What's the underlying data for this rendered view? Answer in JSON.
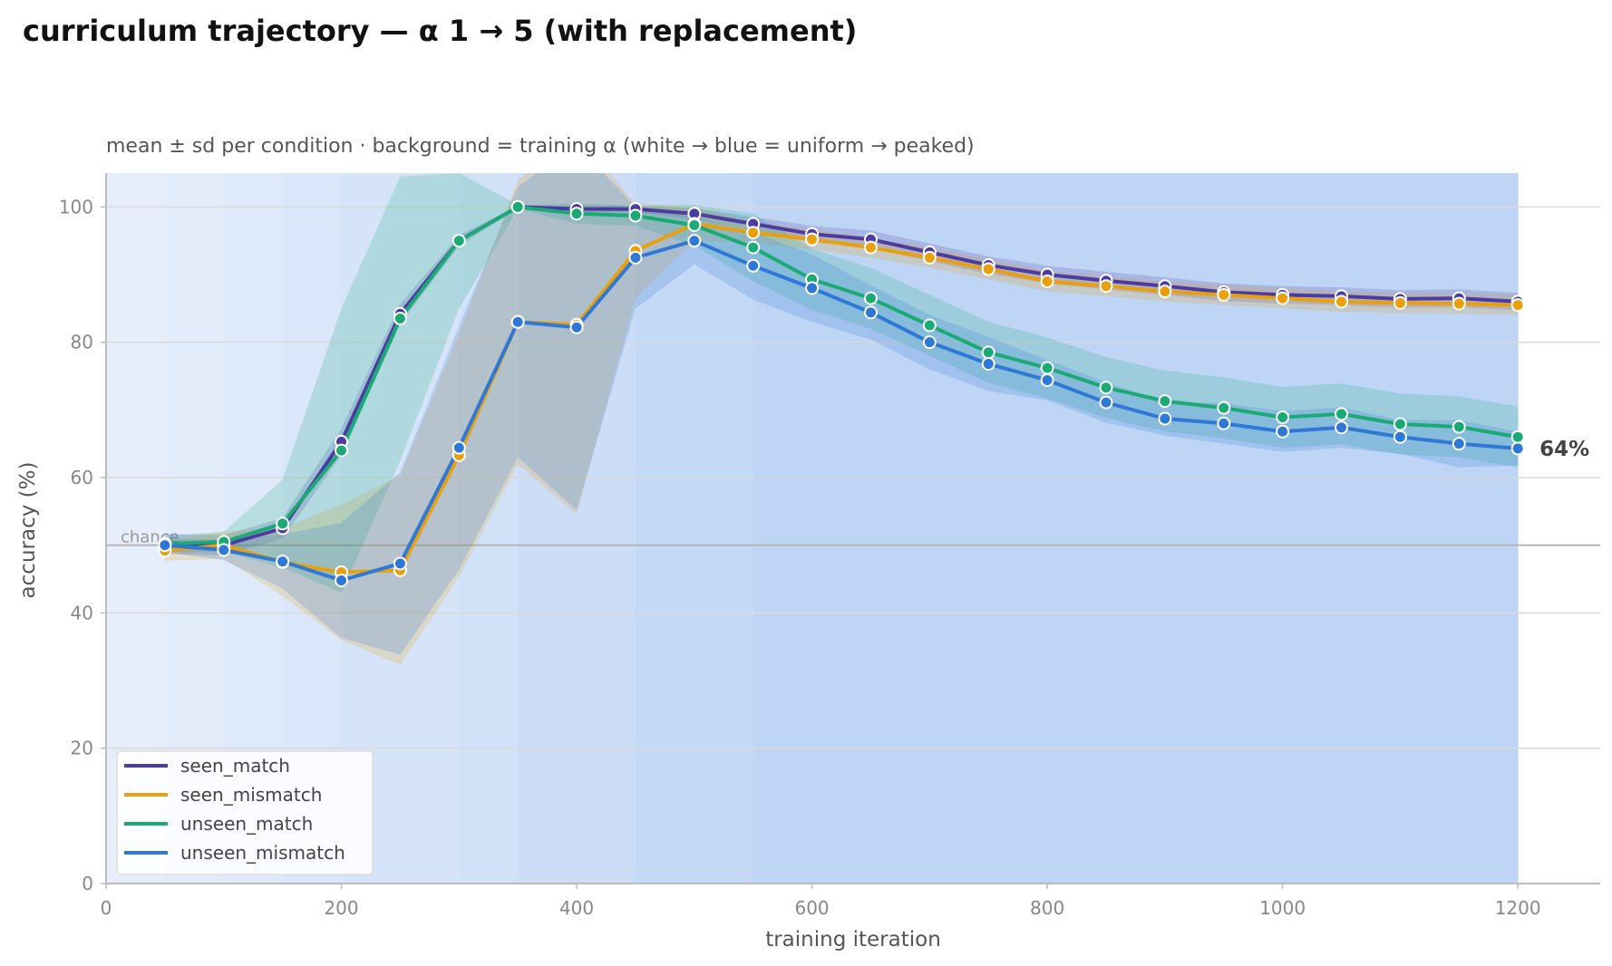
{
  "chart_data": {
    "type": "line",
    "title": "curriculum trajectory — α 1 → 5 (with replacement)",
    "subtitle": "mean ± sd per condition · background = training α (white → blue = uniform → peaked)",
    "xlabel": "training iteration",
    "ylabel": "accuracy (%)",
    "xlim": [
      0,
      1270
    ],
    "ylim": [
      0,
      105
    ],
    "xticks": [
      0,
      200,
      400,
      600,
      800,
      1000,
      1200
    ],
    "yticks": [
      0,
      20,
      40,
      60,
      80,
      100
    ],
    "grid": "horizontal",
    "legend_position": "bottom-left",
    "chance": {
      "value": 50,
      "label": "chance"
    },
    "end_annotation": {
      "series": "unseen_mismatch",
      "label": "64%"
    },
    "background_alpha": {
      "x": [
        0,
        50,
        100,
        150,
        200,
        300,
        350,
        450,
        550,
        1200
      ],
      "shade": [
        0.05,
        0.12,
        0.2,
        0.28,
        0.36,
        0.46,
        0.58,
        0.72,
        0.85
      ]
    },
    "x": [
      50,
      100,
      150,
      200,
      250,
      300,
      350,
      400,
      450,
      500,
      550,
      600,
      650,
      700,
      750,
      800,
      850,
      900,
      950,
      1000,
      1050,
      1100,
      1150,
      1200
    ],
    "series": [
      {
        "name": "seen_match",
        "color": "#4B3BA3",
        "values": [
          50.2,
          50.0,
          52.5,
          65.3,
          84.2,
          95.0,
          100.0,
          99.7,
          99.7,
          99.0,
          97.5,
          96.0,
          95.2,
          93.3,
          91.4,
          90.0,
          89.1,
          88.3,
          87.4,
          87.0,
          86.8,
          86.4,
          86.5,
          86.0
        ],
        "sd": [
          1.5,
          1.5,
          1.5,
          2.0,
          1.5,
          0.8,
          0.2,
          0.5,
          0.5,
          0.8,
          1.0,
          1.2,
          1.3,
          1.3,
          1.3,
          1.3,
          1.3,
          1.3,
          1.3,
          1.3,
          1.3,
          1.3,
          1.3,
          1.3
        ]
      },
      {
        "name": "seen_mismatch",
        "color": "#E8A00E",
        "values": [
          49.2,
          50.0,
          47.5,
          46.0,
          46.3,
          63.3,
          83.0,
          82.6,
          93.5,
          97.5,
          96.2,
          95.2,
          94.0,
          92.5,
          90.8,
          89.0,
          88.3,
          87.5,
          87.0,
          86.5,
          86.0,
          85.8,
          85.7,
          85.5
        ],
        "sd": [
          1.5,
          2.0,
          5.0,
          10.0,
          14.0,
          18.0,
          21.0,
          28.0,
          7.0,
          2.5,
          1.5,
          1.5,
          1.5,
          1.5,
          1.5,
          1.5,
          1.5,
          1.5,
          1.5,
          1.5,
          1.5,
          1.5,
          1.5,
          1.5
        ]
      },
      {
        "name": "unseen_match",
        "color": "#1BAA76",
        "values": [
          50.2,
          50.5,
          53.2,
          64.0,
          83.5,
          95.0,
          100.0,
          99.0,
          98.7,
          97.3,
          94.0,
          89.3,
          86.5,
          82.5,
          78.5,
          76.2,
          73.3,
          71.3,
          70.3,
          68.9,
          69.4,
          67.9,
          67.5,
          66.0
        ],
        "sd": [
          1.2,
          1.5,
          6.5,
          21.0,
          21.0,
          10.0,
          0.3,
          1.5,
          1.5,
          3.0,
          5.0,
          4.5,
          4.5,
          4.5,
          4.5,
          4.5,
          4.5,
          4.5,
          4.5,
          4.5,
          4.5,
          4.5,
          4.5,
          4.5
        ]
      },
      {
        "name": "unseen_mismatch",
        "color": "#2F78D6",
        "values": [
          50.0,
          49.3,
          47.6,
          44.8,
          47.3,
          64.4,
          83.0,
          82.2,
          92.5,
          95.0,
          91.3,
          88.0,
          84.4,
          80.0,
          76.8,
          74.4,
          71.1,
          68.7,
          68.0,
          66.8,
          67.4,
          66.0,
          65.0,
          64.3
        ],
        "sd": [
          1.0,
          1.5,
          4.0,
          8.5,
          13.5,
          18.0,
          20.0,
          27.0,
          7.5,
          3.5,
          5.0,
          5.0,
          4.0,
          4.0,
          4.0,
          3.0,
          3.0,
          2.5,
          3.0,
          3.0,
          3.0,
          2.5,
          3.5,
          2.5
        ]
      }
    ]
  }
}
